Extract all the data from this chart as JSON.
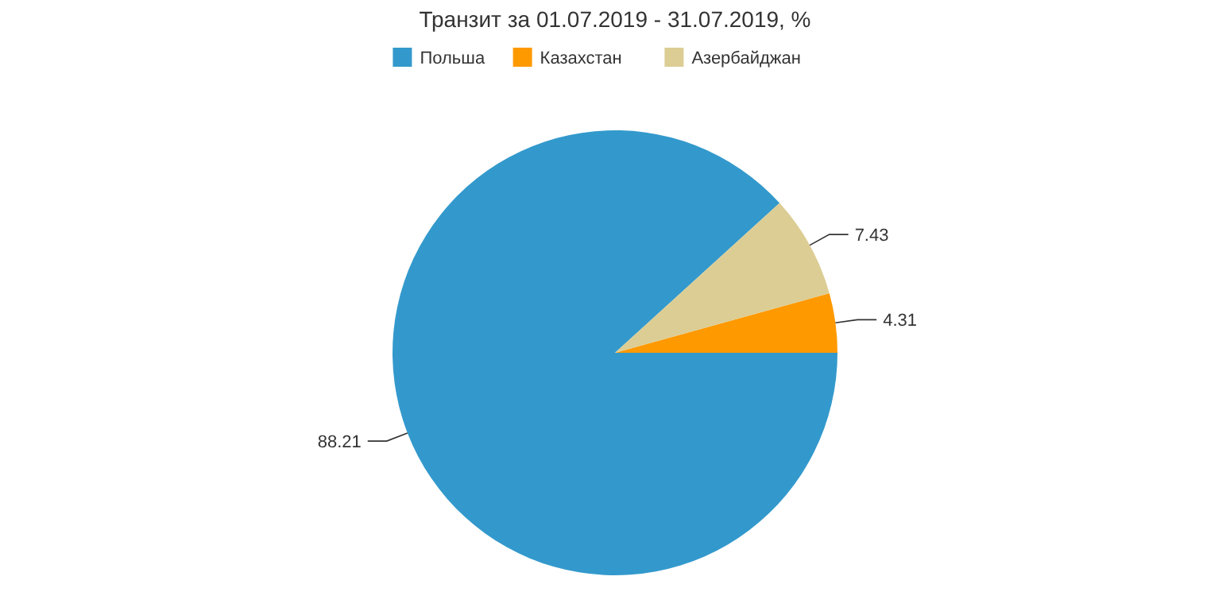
{
  "chart_data": {
    "type": "pie",
    "title": "Транзит за 01.07.2019 - 31.07.2019, %",
    "categories": [
      "Польша",
      "Казахстан",
      "Азербайджан"
    ],
    "values": [
      88.21,
      4.31,
      7.43
    ],
    "colors": [
      "#3399cc",
      "#ff9900",
      "#dccd94"
    ],
    "data_labels": true,
    "legend": "top"
  }
}
